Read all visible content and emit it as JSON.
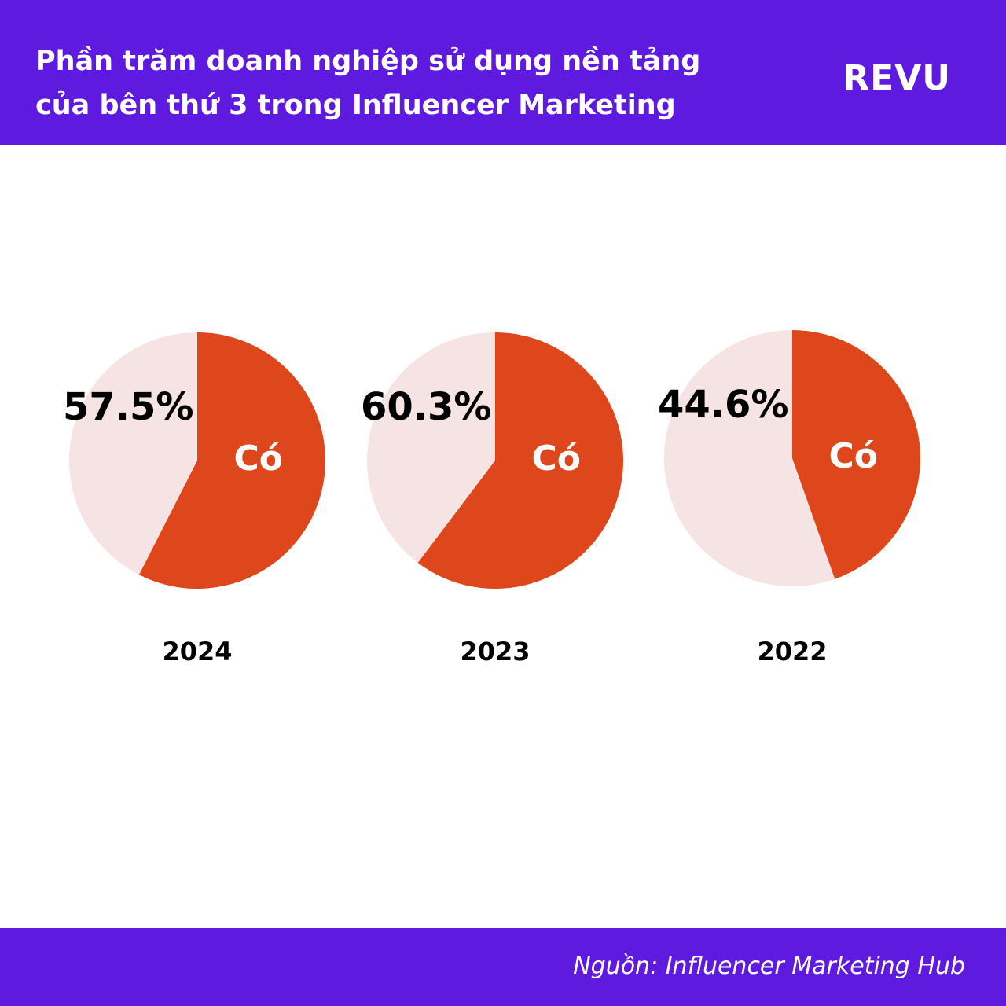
{
  "header": {
    "title_line1": "Phần trăm doanh nghiệp sử dụng nền tảng",
    "title_line2": "của bên thứ 3 trong Influencer Marketing",
    "brand": "REVU"
  },
  "footer": {
    "source": "Nguồn: Influencer Marketing Hub"
  },
  "colors": {
    "header_bg": "#5f1ae0",
    "yes_slice": "#dd471b",
    "rest_slice": "#f6e3e3"
  },
  "chart_data": [
    {
      "type": "pie",
      "year": "2024",
      "value": 57.5,
      "value_label": "57.5%",
      "slice_label": "Có"
    },
    {
      "type": "pie",
      "year": "2023",
      "value": 60.3,
      "value_label": "60.3%",
      "slice_label": "Có"
    },
    {
      "type": "pie",
      "year": "2022",
      "value": 44.6,
      "value_label": "44.6%",
      "slice_label": "Có"
    }
  ]
}
